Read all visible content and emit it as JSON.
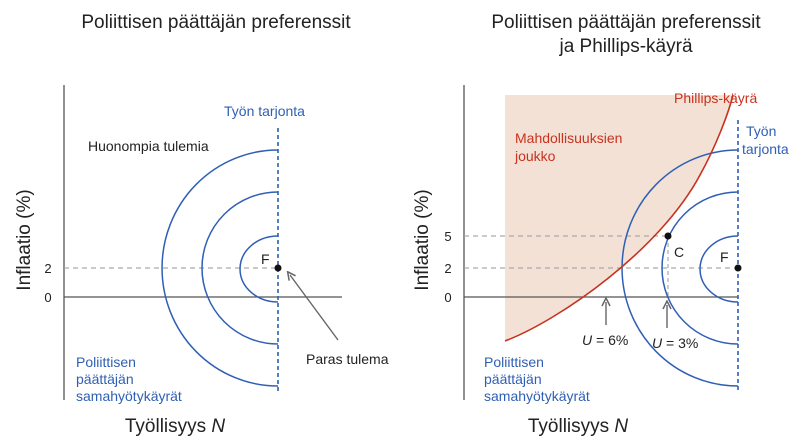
{
  "left_panel": {
    "title": "Poliittisen päättäjän preferenssit",
    "y_axis_label": "Inflaatio (%)",
    "x_axis_label_prefix": "Työllisyys ",
    "x_axis_label_var": "N",
    "y_ticks": [
      "2",
      "0"
    ],
    "labor_supply_label": "Työn tarjonta",
    "worse_outcomes_label": "Huonompia tulemia",
    "point_label": "F",
    "best_outcome_label": "Paras tulema",
    "indifference_label": [
      "Poliittisen",
      "päättäjän",
      "samahyötykäyrät"
    ]
  },
  "right_panel": {
    "title_line1": "Poliittisen päättäjän preferenssit",
    "title_line2": "ja Phillips-käyrä",
    "y_axis_label": "Inflaatio (%)",
    "x_axis_label_prefix": "Työllisyys ",
    "x_axis_label_var": "N",
    "y_ticks": [
      "5",
      "2",
      "0"
    ],
    "phillips_label": "Phillips-käyrä",
    "feasible_label": [
      "Mahdollisuuksien",
      "joukko"
    ],
    "labor_supply_label": [
      "Työn",
      "tarjonta"
    ],
    "point_c_label": "C",
    "point_f_label": "F",
    "u6_var": "U",
    "u6_rest": " = 6%",
    "u3_var": "U",
    "u3_rest": " = 3%",
    "indifference_label": [
      "Poliittisen",
      "päättäjän",
      "samahyötykäyrät"
    ]
  },
  "colors": {
    "blue": "#2f5fb4",
    "red": "#c8321f",
    "feasible_fill": "#f3e1d6",
    "axis": "#555555",
    "dashed": "#aaaaaa"
  }
}
